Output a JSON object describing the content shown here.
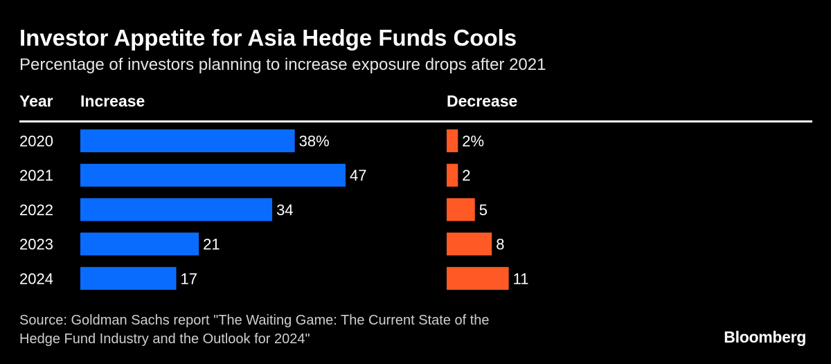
{
  "header": {
    "title": "Investor Appetite for Asia Hedge Funds Cools",
    "subtitle": "Percentage of investors planning to increase exposure drops after 2021"
  },
  "columns": {
    "year": "Year",
    "increase": "Increase",
    "decrease": "Decrease"
  },
  "chart_data": {
    "type": "bar",
    "categories": [
      "2020",
      "2021",
      "2022",
      "2023",
      "2024"
    ],
    "series": [
      {
        "name": "Increase",
        "values": [
          38,
          47,
          34,
          21,
          17
        ],
        "labels": [
          "38%",
          "47",
          "34",
          "21",
          "17"
        ],
        "color": "#0a6cff"
      },
      {
        "name": "Decrease",
        "values": [
          2,
          2,
          5,
          8,
          11
        ],
        "labels": [
          "2%",
          "2",
          "5",
          "8",
          "11"
        ],
        "color": "#ff5a26"
      }
    ],
    "orientation": "horizontal",
    "xlim": [
      0,
      47
    ],
    "grid": false,
    "legend": "none"
  },
  "footer": {
    "source_line1": "Source: Goldman Sachs report \"The Waiting Game: The Current State of the",
    "source_line2": "Hedge Fund Industry and the Outlook for 2024\"",
    "brand": "Bloomberg"
  },
  "colors": {
    "background": "#000000",
    "text": "#ffffff",
    "increase": "#0a6cff",
    "decrease": "#ff5a26"
  }
}
